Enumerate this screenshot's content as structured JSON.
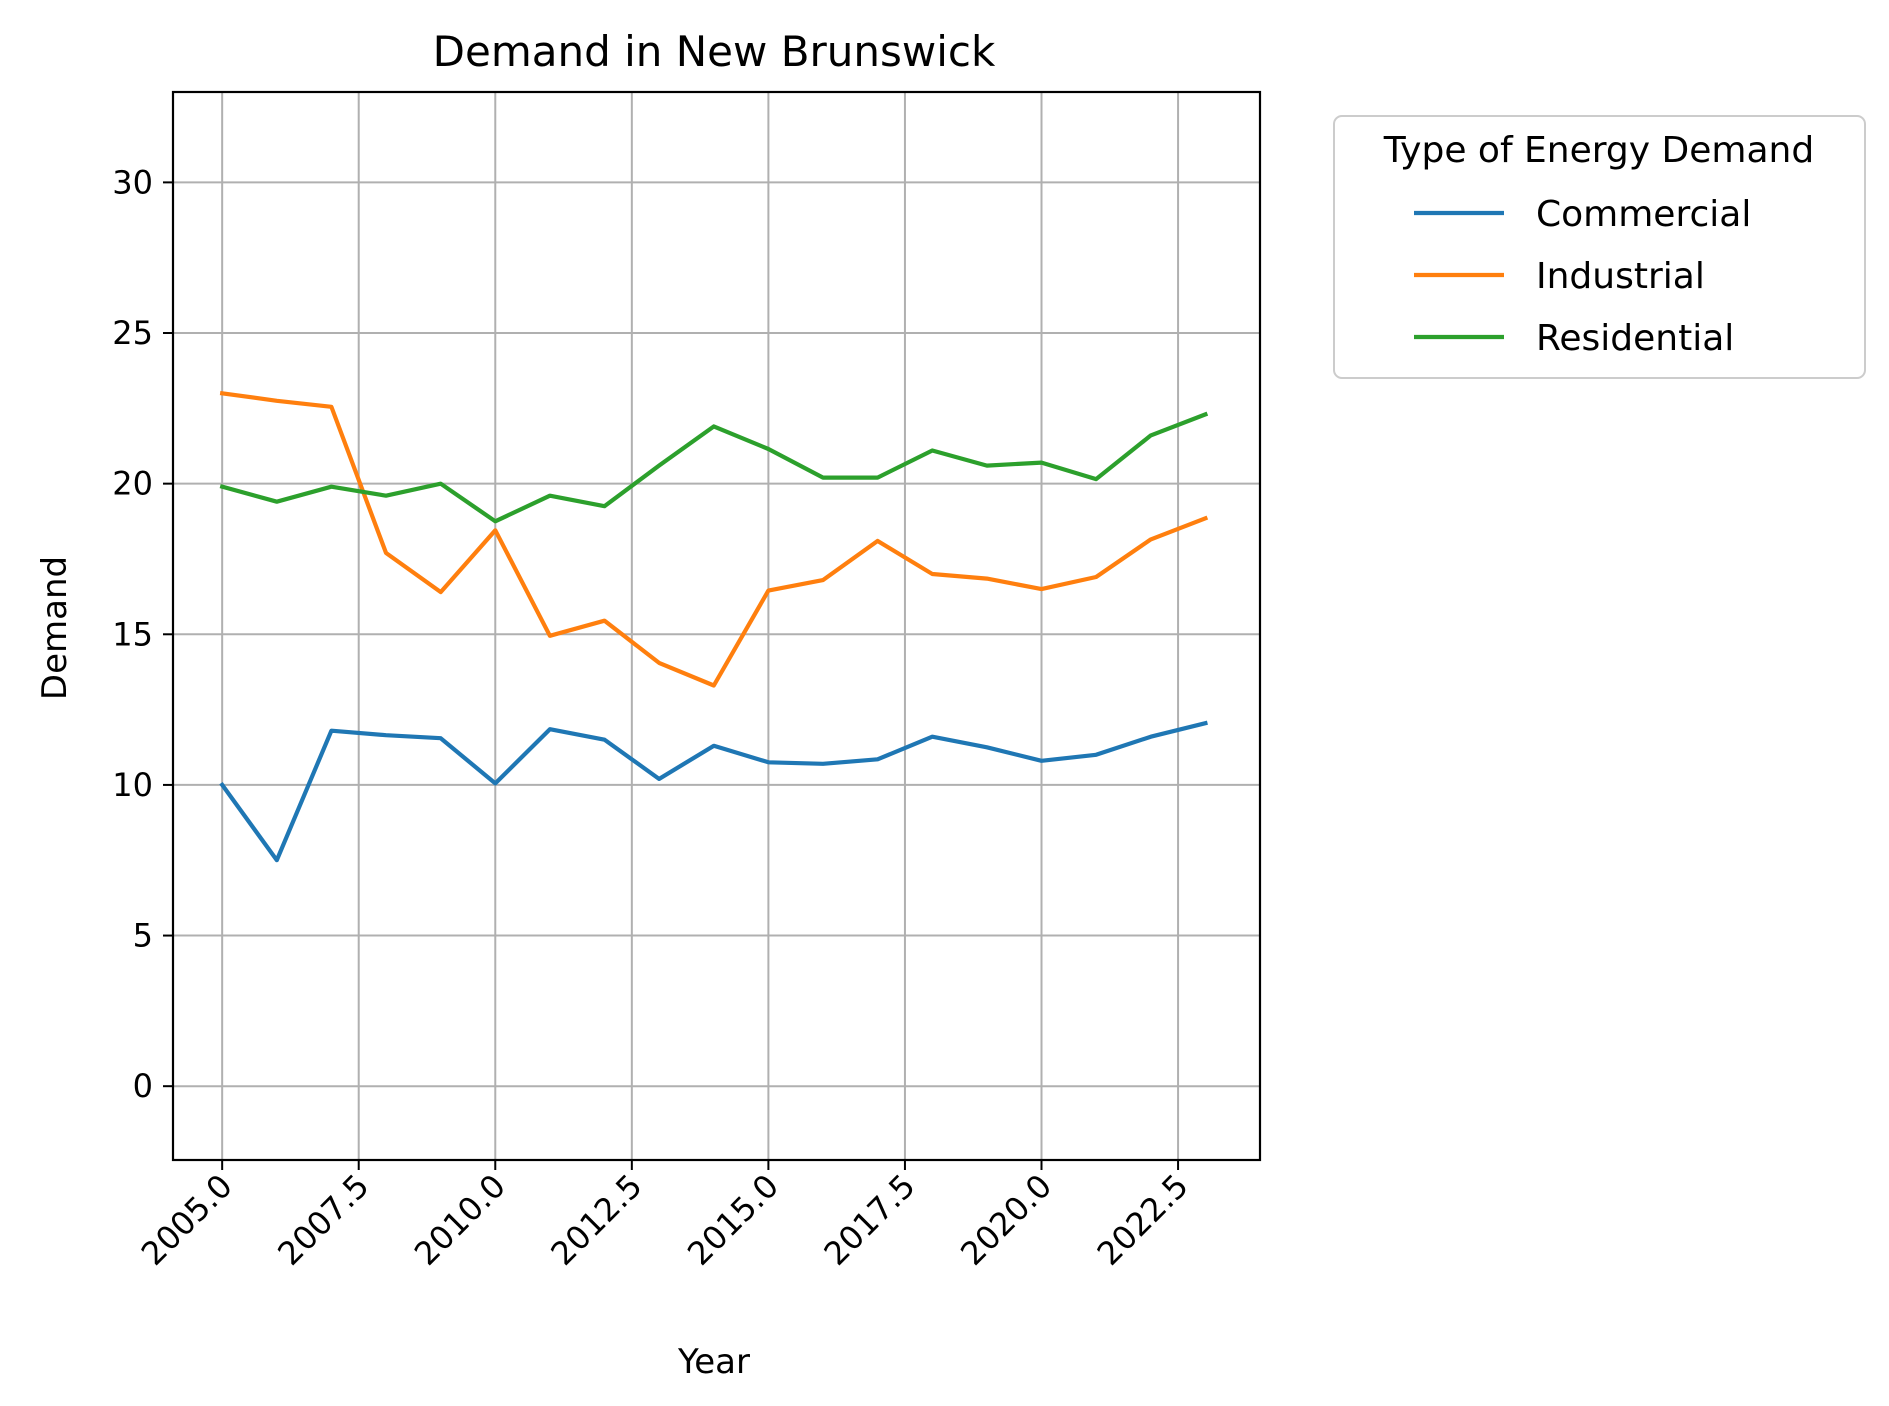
{
  "chart_data": {
    "type": "line",
    "title": "Demand in New Brunswick",
    "xlabel": "Year",
    "ylabel": "Demand",
    "xlim": [
      2004.1,
      2024.0
    ],
    "ylim": [
      -2.45,
      33.0
    ],
    "xticks": [
      2005.0,
      2007.5,
      2010.0,
      2012.5,
      2015.0,
      2017.5,
      2020.0,
      2022.5
    ],
    "xtick_labels": [
      "2005.0",
      "2007.5",
      "2010.0",
      "2012.5",
      "2015.0",
      "2017.5",
      "2020.0",
      "2022.5"
    ],
    "yticks": [
      0,
      5,
      10,
      15,
      20,
      25,
      30
    ],
    "ytick_labels": [
      "0",
      "5",
      "10",
      "15",
      "20",
      "25",
      "30"
    ],
    "grid": true,
    "legend": {
      "title": "Type of Energy Demand",
      "placement": "outside top-right"
    },
    "x": [
      2005,
      2006,
      2007,
      2008,
      2009,
      2010,
      2011,
      2012,
      2013,
      2014,
      2015,
      2016,
      2017,
      2018,
      2019,
      2020,
      2021,
      2022,
      2023
    ],
    "series": [
      {
        "name": "Commercial",
        "color": "#1f77b4",
        "values": [
          10.0,
          7.5,
          11.8,
          11.65,
          11.55,
          10.05,
          11.85,
          11.5,
          10.2,
          11.3,
          10.75,
          10.7,
          10.85,
          11.6,
          11.25,
          10.8,
          11.0,
          11.6,
          12.05
        ]
      },
      {
        "name": "Industrial",
        "color": "#ff7f0e",
        "values": [
          23.0,
          22.75,
          22.55,
          17.7,
          16.4,
          18.45,
          14.95,
          15.45,
          14.05,
          13.3,
          16.45,
          16.8,
          18.1,
          17.0,
          16.85,
          16.5,
          16.9,
          18.15,
          18.85
        ]
      },
      {
        "name": "Residential",
        "color": "#2ca02c",
        "values": [
          19.9,
          19.4,
          19.9,
          19.6,
          20.0,
          18.75,
          19.6,
          19.25,
          20.6,
          21.9,
          21.15,
          20.2,
          20.2,
          21.1,
          20.6,
          20.7,
          20.15,
          21.6,
          22.3
        ]
      }
    ]
  }
}
